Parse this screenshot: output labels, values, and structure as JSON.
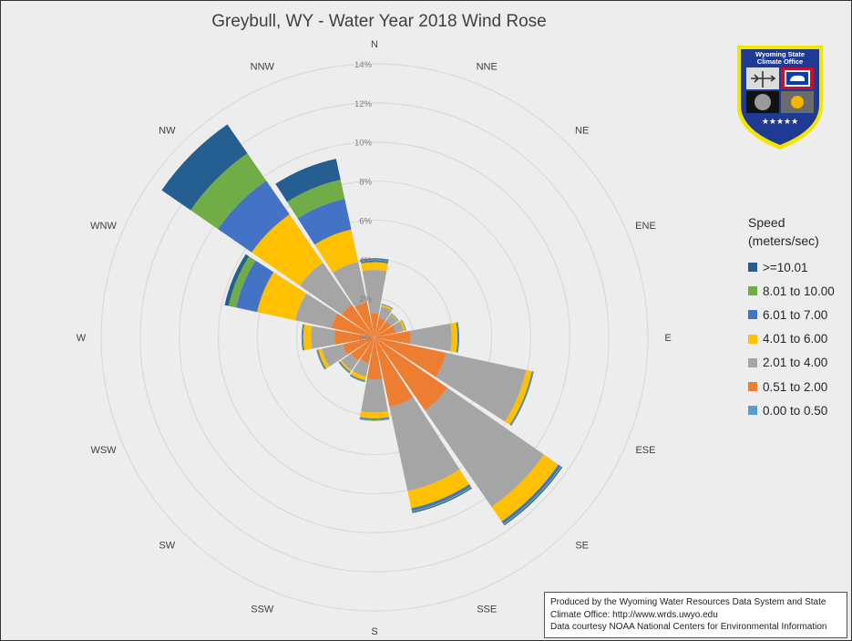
{
  "chart_data": {
    "type": "rose",
    "title": "Greybull, WY - Water Year 2018 Wind Rose",
    "directions": [
      "N",
      "NNE",
      "NE",
      "ENE",
      "E",
      "ESE",
      "SE",
      "SSE",
      "S",
      "SSW",
      "SW",
      "WSW",
      "W",
      "WNW",
      "NW",
      "NNW"
    ],
    "radial_ticks": [
      "0%",
      "2%",
      "4%",
      "6%",
      "8%",
      "10%",
      "12%",
      "14%"
    ],
    "rmax": 14,
    "unit": "%",
    "legend_title_line1": "Speed",
    "legend_title_line2": "(meters/sec)",
    "series": [
      {
        "name": "0.00 to 0.50",
        "color": "#5b9bd5",
        "values": [
          0.05,
          0.02,
          0.02,
          0.02,
          0.05,
          0.05,
          0.05,
          0.05,
          0.05,
          0.05,
          0.05,
          0.05,
          0.05,
          0.05,
          0.05,
          0.05
        ]
      },
      {
        "name": "0.51 to 2.00",
        "color": "#ed7d31",
        "values": [
          1.2,
          1.0,
          1.0,
          1.1,
          1.8,
          3.7,
          4.5,
          3.6,
          2.1,
          1.3,
          1.4,
          1.6,
          2.0,
          2.2,
          2.0,
          1.8
        ]
      },
      {
        "name": "2.01 to 4.00",
        "color": "#a5a5a5",
        "values": [
          2.2,
          0.6,
          0.4,
          0.4,
          2.1,
          4.2,
          6.0,
          4.4,
          1.7,
          0.7,
          0.6,
          1.1,
          1.2,
          1.9,
          2.6,
          2.1
        ]
      },
      {
        "name": "4.01 to 6.00",
        "color": "#ffc000",
        "values": [
          0.4,
          0.1,
          0.05,
          0.1,
          0.3,
          0.3,
          0.9,
          0.9,
          0.3,
          0.2,
          0.1,
          0.2,
          0.4,
          2.0,
          3.0,
          1.7
        ]
      },
      {
        "name": "6.01 to 7.00",
        "color": "#4472c4",
        "values": [
          0.1,
          0.02,
          0.02,
          0.02,
          0.05,
          0.05,
          0.15,
          0.15,
          0.05,
          0.05,
          0.05,
          0.05,
          0.05,
          1.1,
          2.1,
          1.6
        ]
      },
      {
        "name": "8.01 to 10.00",
        "color": "#70ad47",
        "values": [
          0.05,
          0.01,
          0.01,
          0.01,
          0.02,
          0.02,
          0.05,
          0.05,
          0.05,
          0.02,
          0.02,
          0.02,
          0.02,
          0.4,
          1.7,
          1.0
        ]
      },
      {
        "name": ">=10.01",
        "color": "#255e91",
        "values": [
          0.05,
          0.01,
          0.01,
          0.01,
          0.02,
          0.02,
          0.05,
          0.05,
          0.02,
          0.02,
          0.02,
          0.02,
          0.02,
          0.2,
          1.8,
          1.1
        ]
      }
    ]
  },
  "logo": {
    "line1": "Wyoming State",
    "line2": "Climate Office",
    "stars": "★★★★★",
    "colors": {
      "shield": "#1f3a93",
      "border": "#f2e600"
    }
  },
  "credit": {
    "line1": "Produced by the Wyoming Water Resources Data System and State",
    "line2": "Climate Office: http://www.wrds.uwyo.edu",
    "line3": "Data courtesy NOAA National Centers for Environmental Information"
  }
}
